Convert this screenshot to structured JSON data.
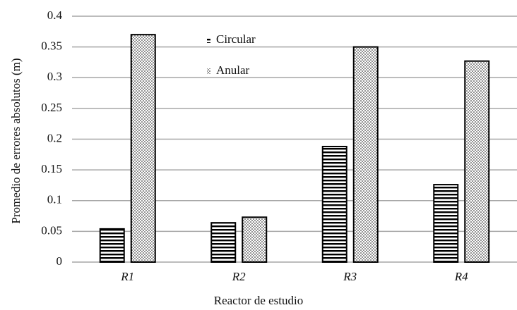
{
  "chart_data": {
    "type": "bar",
    "x_label": "Reactor de estudio",
    "y_label": "Promedio de errores absolutos (m)",
    "categories": [
      "R1",
      "R2",
      "R3",
      "R4"
    ],
    "series": [
      {
        "name": "Circular",
        "color": "#000000",
        "pattern": "horizontal-lines",
        "values": [
          0.054,
          0.064,
          0.188,
          0.126
        ]
      },
      {
        "name": "Anular",
        "color": "#000000",
        "pattern": "dots",
        "values": [
          0.37,
          0.073,
          0.35,
          0.327
        ]
      }
    ],
    "ylim": [
      0,
      0.4
    ],
    "yticks": [
      0,
      0.05,
      0.1,
      0.15,
      0.2,
      0.25,
      0.3,
      0.35,
      0.4
    ],
    "grid": true,
    "legend": "top"
  }
}
